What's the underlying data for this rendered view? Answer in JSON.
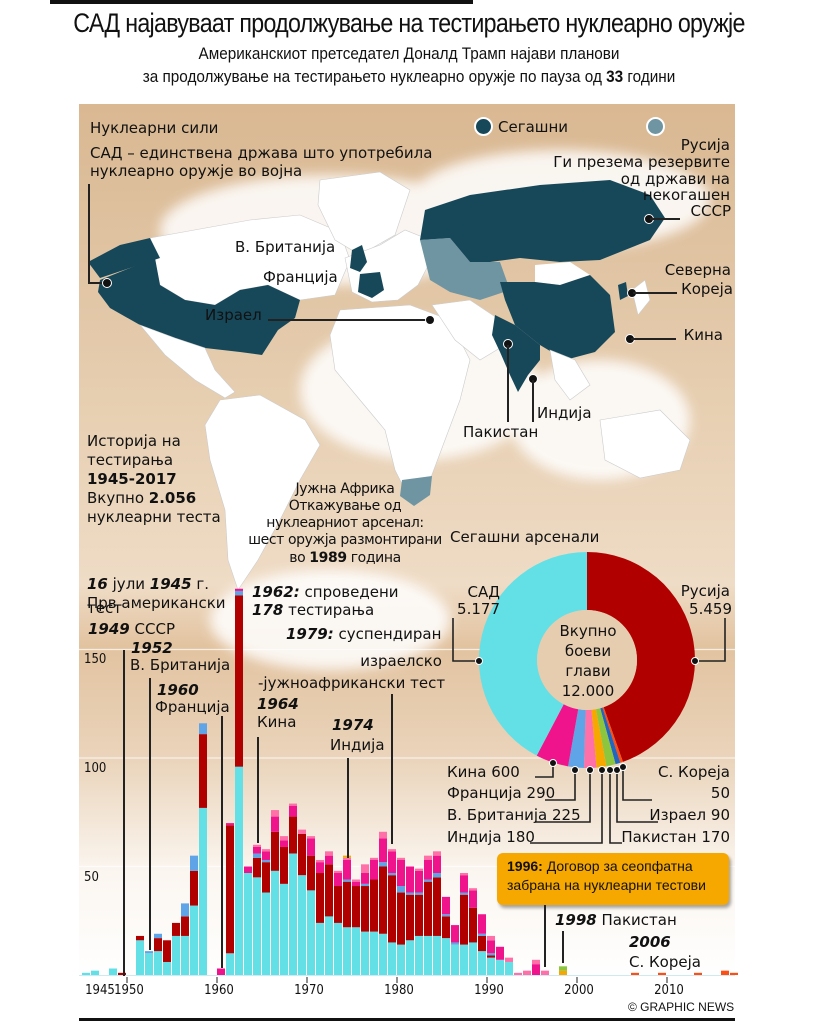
{
  "header": {
    "title": "САД најавуваат продолжување на тестирањето нуклеарно оружје",
    "subtitle_line1": "Американскиот претседател Доналд Трамп најави планови",
    "subtitle_line2_pre": "за продолжување на тестирањето нуклеарно оружје по пауза од ",
    "subtitle_line2_bold": "33",
    "subtitle_line2_post": " години"
  },
  "map": {
    "heading": "Нуклеарни сили",
    "legend": [
      {
        "label": "Сегашни",
        "color": "#17485a"
      },
      {
        "label": "",
        "color": "#6f95a2"
      }
    ],
    "usa_note_line1": "САД – единствена држава што употребила",
    "usa_note_line2": "нуклеарно оружје во војна",
    "russia_title": "Русија",
    "russia_note": [
      "Ги презема резервите",
      "од држави на",
      "некогашен",
      "СССР"
    ],
    "labels": {
      "uk": "В. Британија",
      "france": "Франција",
      "israel": "Израел",
      "north_korea_1": "Северна",
      "north_korea_2": "Кореја",
      "china": "Кина",
      "india": "Индија",
      "pakistan": "Пакистан"
    },
    "south_africa": {
      "title": "Јужна Африка",
      "line1": "Откажување од",
      "line2": "нуклеарниот арсенал:",
      "line3": "шест оружја размонтирани",
      "line4_pre": "во ",
      "line4_bold": "1989",
      "line4_post": " година"
    }
  },
  "history": {
    "line1": "Историја на",
    "line2": "тестирања",
    "years": "1945-2017",
    "total_pre": "Вкупно ",
    "total_bold": "2.056",
    "total_post": "нуклеарни теста"
  },
  "colors": {
    "usa": "#62e0e6",
    "ussr": "#b00000",
    "uk": "#60a4e8",
    "france": "#f0148c",
    "china": "#ff6fa8",
    "india": "#f6a800",
    "pakistan": "#8cc63f",
    "north_korea": "#ff4e14",
    "israel": "#2266c0",
    "current": "#17485a",
    "former": "#6f95a2",
    "callout": "#f6a800"
  },
  "chart_data": [
    {
      "type": "bar",
      "stacked": true,
      "title": "Историја на тестирања 1945-2017",
      "xlabel": "",
      "ylabel": "",
      "ylim": [
        0,
        185
      ],
      "yticks": [
        50,
        100,
        150
      ],
      "xticks": [
        1945,
        1950,
        1960,
        1970,
        1980,
        1990,
        2000,
        2010
      ],
      "grid": true,
      "x": [
        1945,
        1946,
        1947,
        1948,
        1949,
        1950,
        1951,
        1952,
        1953,
        1954,
        1955,
        1956,
        1957,
        1958,
        1959,
        1960,
        1961,
        1962,
        1963,
        1964,
        1965,
        1966,
        1967,
        1968,
        1969,
        1970,
        1971,
        1972,
        1973,
        1974,
        1975,
        1976,
        1977,
        1978,
        1979,
        1980,
        1981,
        1982,
        1983,
        1984,
        1985,
        1986,
        1987,
        1988,
        1989,
        1990,
        1991,
        1992,
        1993,
        1994,
        1995,
        1996,
        1997,
        1998,
        1999,
        2000,
        2001,
        2002,
        2003,
        2004,
        2005,
        2006,
        2007,
        2008,
        2009,
        2010,
        2011,
        2012,
        2013,
        2014,
        2015,
        2016,
        2017
      ],
      "series": [
        {
          "name": "САД",
          "values": [
            1,
            2,
            0,
            3,
            0,
            0,
            16,
            10,
            11,
            6,
            18,
            18,
            32,
            77,
            0,
            0,
            10,
            96,
            47,
            45,
            38,
            48,
            42,
            56,
            46,
            39,
            24,
            27,
            24,
            22,
            22,
            20,
            20,
            19,
            15,
            14,
            16,
            18,
            18,
            18,
            17,
            14,
            14,
            15,
            11,
            8,
            7,
            6,
            0,
            0,
            0,
            0,
            0,
            0,
            0,
            0,
            0,
            0,
            0,
            0,
            0,
            0,
            0,
            0,
            0,
            0,
            0,
            0,
            0,
            0,
            0,
            0,
            0
          ]
        },
        {
          "name": "СССР",
          "values": [
            0,
            0,
            0,
            0,
            1,
            0,
            2,
            0,
            6,
            10,
            6,
            9,
            16,
            34,
            0,
            0,
            59,
            79,
            0,
            9,
            14,
            18,
            17,
            17,
            19,
            16,
            23,
            24,
            17,
            21,
            19,
            21,
            24,
            31,
            31,
            24,
            21,
            19,
            25,
            27,
            10,
            0,
            23,
            16,
            7,
            1,
            0,
            0,
            0,
            0,
            0,
            0,
            0,
            0,
            0,
            0,
            0,
            0,
            0,
            0,
            0,
            0,
            0,
            0,
            0,
            0,
            0,
            0,
            0,
            0,
            0,
            0,
            0
          ]
        },
        {
          "name": "В. Британија",
          "values": [
            0,
            0,
            0,
            0,
            0,
            0,
            0,
            1,
            2,
            0,
            0,
            6,
            7,
            5,
            0,
            0,
            0,
            2,
            0,
            2,
            1,
            0,
            0,
            0,
            0,
            0,
            0,
            0,
            0,
            1,
            0,
            1,
            0,
            2,
            1,
            3,
            1,
            1,
            1,
            2,
            1,
            1,
            1,
            0,
            1,
            1,
            0,
            0,
            0,
            0,
            0,
            0,
            0,
            0,
            0,
            0,
            0,
            0,
            0,
            0,
            0,
            0,
            0,
            0,
            0,
            0,
            0,
            0,
            0,
            0,
            0,
            0,
            0
          ]
        },
        {
          "name": "Франција",
          "values": [
            0,
            0,
            0,
            0,
            0,
            0,
            0,
            0,
            0,
            0,
            0,
            0,
            0,
            0,
            0,
            3,
            1,
            1,
            3,
            3,
            4,
            7,
            3,
            5,
            0,
            8,
            5,
            4,
            6,
            9,
            2,
            5,
            9,
            11,
            10,
            12,
            12,
            10,
            9,
            8,
            8,
            8,
            8,
            8,
            9,
            6,
            6,
            0,
            0,
            0,
            5,
            0,
            0,
            0,
            0,
            0,
            0,
            0,
            0,
            0,
            0,
            0,
            0,
            0,
            0,
            0,
            0,
            0,
            0,
            0,
            0,
            0,
            0
          ]
        },
        {
          "name": "Кина",
          "values": [
            0,
            0,
            0,
            0,
            0,
            0,
            0,
            0,
            0,
            0,
            0,
            0,
            0,
            0,
            0,
            0,
            0,
            0,
            0,
            1,
            1,
            3,
            2,
            1,
            2,
            1,
            1,
            2,
            1,
            1,
            1,
            4,
            1,
            3,
            1,
            1,
            0,
            1,
            2,
            2,
            0,
            0,
            1,
            1,
            0,
            2,
            0,
            2,
            1,
            2,
            2,
            2,
            0,
            0,
            0,
            0,
            0,
            0,
            0,
            0,
            0,
            0,
            0,
            0,
            0,
            0,
            0,
            0,
            0,
            0,
            0,
            0,
            0
          ]
        },
        {
          "name": "Индија",
          "values": [
            0,
            0,
            0,
            0,
            0,
            0,
            0,
            0,
            0,
            0,
            0,
            0,
            0,
            0,
            0,
            0,
            0,
            0,
            0,
            0,
            0,
            0,
            0,
            0,
            0,
            0,
            0,
            0,
            0,
            1,
            0,
            0,
            0,
            0,
            0,
            0,
            0,
            0,
            0,
            0,
            0,
            0,
            0,
            0,
            0,
            0,
            0,
            0,
            0,
            0,
            0,
            0,
            0,
            2,
            0,
            0,
            0,
            0,
            0,
            0,
            0,
            0,
            0,
            0,
            0,
            0,
            0,
            0,
            0,
            0,
            0,
            0,
            0
          ]
        },
        {
          "name": "Пакистан",
          "values": [
            0,
            0,
            0,
            0,
            0,
            0,
            0,
            0,
            0,
            0,
            0,
            0,
            0,
            0,
            0,
            0,
            0,
            0,
            0,
            0,
            0,
            0,
            0,
            0,
            0,
            0,
            0,
            0,
            0,
            0,
            0,
            0,
            0,
            0,
            0,
            0,
            0,
            0,
            0,
            0,
            0,
            0,
            0,
            0,
            0,
            0,
            0,
            0,
            0,
            0,
            0,
            0,
            0,
            2,
            0,
            0,
            0,
            0,
            0,
            0,
            0,
            0,
            0,
            0,
            0,
            0,
            0,
            0,
            0,
            0,
            0,
            0,
            0
          ]
        },
        {
          "name": "С. Кореја",
          "values": [
            0,
            0,
            0,
            0,
            0,
            0,
            0,
            0,
            0,
            0,
            0,
            0,
            0,
            0,
            0,
            0,
            0,
            0,
            0,
            0,
            0,
            0,
            0,
            0,
            0,
            0,
            0,
            0,
            0,
            0,
            0,
            0,
            0,
            0,
            0,
            0,
            0,
            0,
            0,
            0,
            0,
            0,
            0,
            0,
            0,
            0,
            0,
            0,
            0,
            0,
            0,
            0,
            0,
            0,
            0,
            0,
            0,
            0,
            0,
            0,
            0,
            1,
            0,
            0,
            1,
            0,
            0,
            0,
            1,
            0,
            0,
            2,
            1
          ]
        }
      ],
      "annotations": [
        {
          "year": 1945,
          "bold": "16",
          "text1": " јули ",
          "bold2": "1945",
          "text2": " г.",
          "line2": "Прв американски",
          "line3": "тест"
        },
        {
          "year": 1949,
          "bold": "1949",
          "text": " СССР"
        },
        {
          "year": 1952,
          "bold": "1952",
          "text": "В. Британија"
        },
        {
          "year": 1960,
          "bold": "1960",
          "text": "Франција"
        },
        {
          "year": 1962,
          "bold": "1962:",
          "text": " спроведени",
          "bold2": "178",
          "text2": " тестирања"
        },
        {
          "year": 1964,
          "bold": "1964",
          "text": "Кина"
        },
        {
          "year": 1974,
          "bold": "1974",
          "text": "Индија"
        },
        {
          "year": 1979,
          "bold": "1979:",
          "text": " суспендиран",
          "line2": "израелско",
          "line3": "-јужноафрикански тест"
        },
        {
          "year": 1996,
          "bold": "1996:",
          "text": " Договор за сеопфатна",
          "line2": "забрана на нуклеарни тестови"
        },
        {
          "year": 1998,
          "bold": "1998",
          "text": " Пакистан"
        },
        {
          "year": 2006,
          "bold": "2006",
          "text": "С. Кореја"
        }
      ]
    },
    {
      "type": "pie",
      "donut": true,
      "title": "Сегашни арсенали",
      "center_label": [
        "Вкупно",
        "боеви",
        "глави",
        "12.000"
      ],
      "slices": [
        {
          "name": "Русија",
          "value": 5459,
          "label": "5.459"
        },
        {
          "name": "С. Кореја",
          "value": 50,
          "label": "50"
        },
        {
          "name": "Израел",
          "value": 90,
          "label": "90"
        },
        {
          "name": "Пакистан",
          "value": 170,
          "label": "170"
        },
        {
          "name": "Индија",
          "value": 180,
          "label": "180"
        },
        {
          "name": "В. Британија",
          "value": 225,
          "label": "225"
        },
        {
          "name": "Франција",
          "value": 290,
          "label": "290"
        },
        {
          "name": "Кина",
          "value": 600,
          "label": "600"
        },
        {
          "name": "САД",
          "value": 5177,
          "label": "5.177"
        }
      ]
    }
  ],
  "credit": "© GRAPHIC NEWS"
}
